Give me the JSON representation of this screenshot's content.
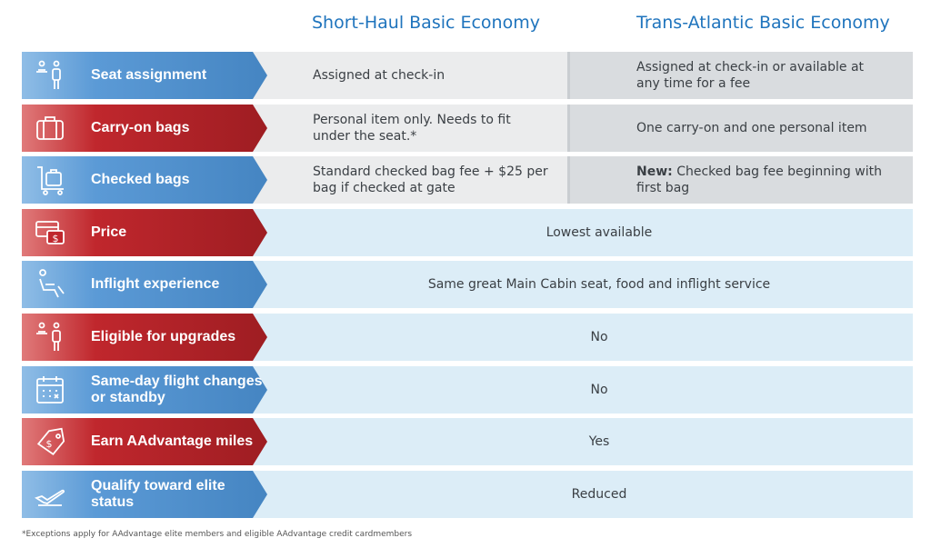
{
  "headers": {
    "short_haul": "Short-Haul Basic Economy",
    "trans_atlantic": "Trans-Atlantic Basic Economy"
  },
  "rows": [
    {
      "label": "Seat assignment",
      "icon": "seat-assignment-icon",
      "color": "blue",
      "short_haul": "Assigned at check-in",
      "trans_atlantic": "Assigned at check-in or available at any time for a fee"
    },
    {
      "label": "Carry-on bags",
      "icon": "carry-on-bag-icon",
      "color": "red",
      "short_haul": "Personal item only. Needs to fit under the seat.*",
      "trans_atlantic": "One carry-on and one personal item"
    },
    {
      "label": "Checked bags",
      "icon": "luggage-cart-icon",
      "color": "blue",
      "short_haul": "Standard checked bag fee + $25 per bag if checked at gate",
      "trans_atlantic_prefix": "New:",
      "trans_atlantic": "Checked bag fee beginning with first bag"
    },
    {
      "label": "Price",
      "icon": "price-card-icon",
      "color": "red",
      "shared": "Lowest available"
    },
    {
      "label": "Inflight experience",
      "icon": "recline-seat-icon",
      "color": "blue",
      "shared": "Same great Main Cabin seat, food and inflight service"
    },
    {
      "label": "Eligible for upgrades",
      "icon": "upgrade-seat-icon",
      "color": "red",
      "shared": "No"
    },
    {
      "label": "Same-day flight changes or standby",
      "icon": "calendar-icon",
      "color": "blue",
      "shared": "No"
    },
    {
      "label": "Earn AAdvantage miles",
      "icon": "miles-tag-icon",
      "color": "red",
      "shared": "Yes"
    },
    {
      "label": "Qualify toward elite status",
      "icon": "airplane-icon",
      "color": "blue",
      "shared": "Reduced"
    }
  ],
  "footnote": "*Exceptions apply for AAdvantage elite members and eligible AAdvantage credit cardmembers",
  "colors": {
    "header_blue": "#1f74bd",
    "label_blue": "#5b9ad6",
    "label_red": "#c0272d",
    "short_bg": "#ebeced",
    "trans_bg": "#d9dcdf",
    "shared_bg": "#dcedf7"
  }
}
